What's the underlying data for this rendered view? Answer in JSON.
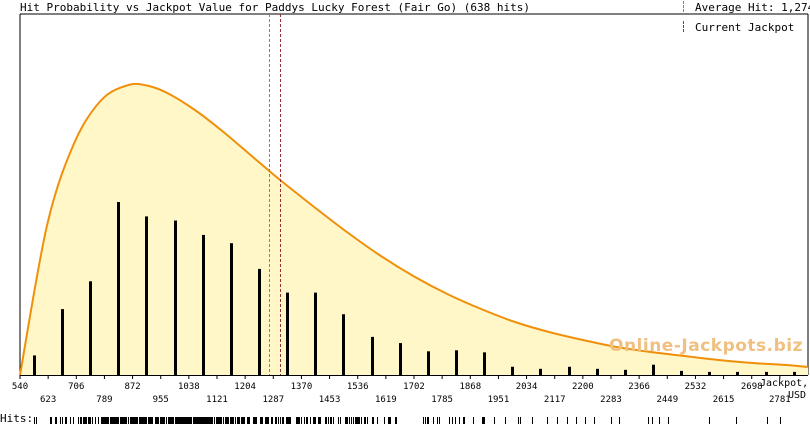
{
  "title": "Hit Probability vs Jackpot Value for Paddys Lucky Forest (Fair Go) (638 hits)",
  "legend": {
    "average_label": "Average Hit: 1,274",
    "current_label": "Current Jackpot"
  },
  "watermark": "Online-Jackpots.biz",
  "x_unit_line1": "Jackpot,",
  "x_unit_line2": "USD",
  "hits_label": "Hits:",
  "colors": {
    "curve": "#f0900a",
    "fill": "#fff7c8",
    "bars": "#000000",
    "average_line": "#3399dd",
    "current_line": "#993333"
  },
  "chart_data": {
    "type": "bar",
    "title": "Hit Probability vs Jackpot Value for Paddys Lucky Forest (Fair Go) (638 hits)",
    "xlabel": "Jackpot, USD",
    "ylabel": "",
    "xlim": [
      540,
      2864
    ],
    "x_ticks_top": [
      540,
      706,
      872,
      1038,
      1204,
      1370,
      1536,
      1702,
      1868,
      2034,
      2200,
      2366,
      2532,
      2698
    ],
    "x_ticks_bottom": [
      623,
      789,
      955,
      1121,
      1287,
      1453,
      1619,
      1785,
      1951,
      2117,
      2283,
      2449,
      2615,
      2781
    ],
    "bins": {
      "x": [
        581,
        664,
        747,
        830,
        913,
        996,
        1079,
        1162,
        1245,
        1328,
        1411,
        1494,
        1577,
        1660,
        1743,
        1826,
        1909,
        1992,
        2075,
        2158,
        2241,
        2324,
        2407,
        2490,
        2573,
        2656,
        2739,
        2822
      ],
      "values": [
        19,
        64,
        91,
        168,
        154,
        150,
        136,
        128,
        103,
        80,
        80,
        59,
        37,
        31,
        23,
        24,
        22,
        8,
        6,
        8,
        6,
        5,
        10,
        4,
        3,
        3,
        3,
        3
      ]
    },
    "probability_curve": {
      "x": [
        540,
        620,
        700,
        780,
        860,
        920,
        980,
        1060,
        1140,
        1220,
        1300,
        1400,
        1500,
        1600,
        1700,
        1800,
        1900,
        2000,
        2100,
        2200,
        2300,
        2400,
        2500,
        2600,
        2700,
        2800,
        2864
      ],
      "y": [
        0,
        150,
        232,
        275,
        290,
        289,
        281,
        264,
        243,
        220,
        197,
        170,
        144,
        120,
        99,
        81,
        66,
        53,
        43,
        35,
        28,
        23,
        19,
        15,
        12,
        10,
        8
      ]
    },
    "average_hit": 1274,
    "current_jackpot": 1306,
    "grid": false,
    "legend_position": "top-right"
  },
  "hits_strip": {
    "description_free": true,
    "density": [
      2,
      14,
      30,
      45,
      48,
      46,
      42,
      38,
      30,
      24,
      20,
      16,
      11,
      9,
      7,
      7,
      6,
      3,
      2,
      3,
      2,
      2,
      3,
      1,
      1,
      1,
      1,
      1
    ]
  }
}
